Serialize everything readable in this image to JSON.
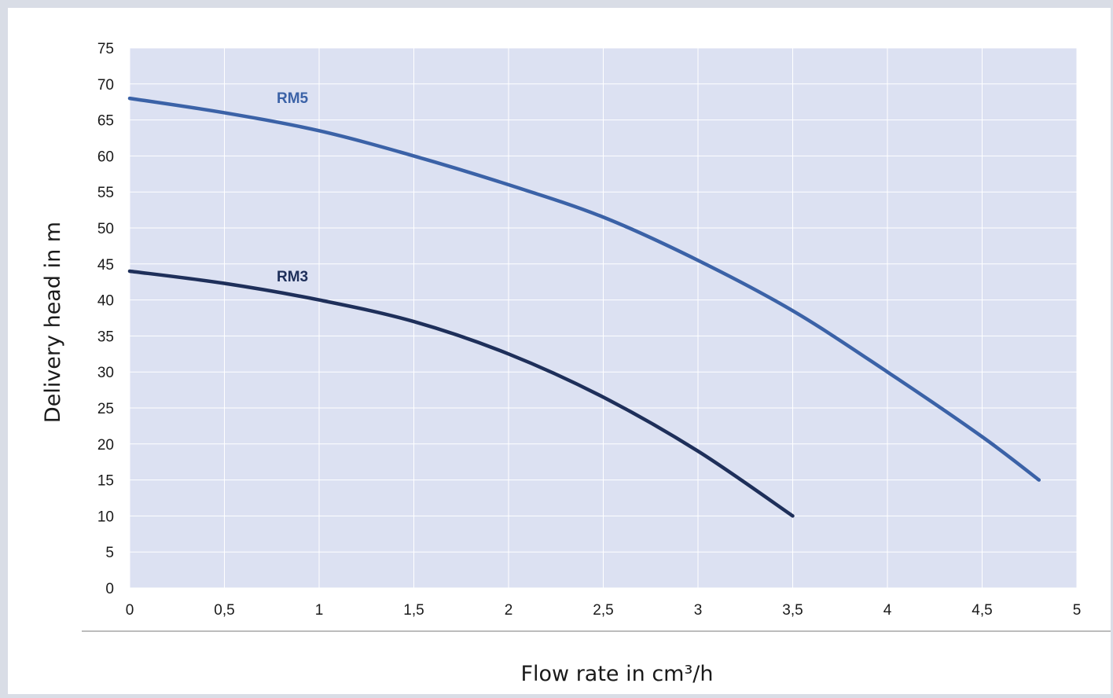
{
  "chart_data": {
    "type": "line",
    "xlabel": "Flow rate in cm³/h",
    "ylabel": "Delivery head in m",
    "xlim": [
      0,
      5
    ],
    "ylim": [
      0,
      75
    ],
    "x_ticks": [
      "0",
      "0,5",
      "1",
      "1,5",
      "2",
      "2,5",
      "3",
      "3,5",
      "4",
      "4,5",
      "5"
    ],
    "y_ticks": [
      "0",
      "5",
      "10",
      "15",
      "20",
      "25",
      "30",
      "35",
      "40",
      "45",
      "50",
      "55",
      "60",
      "65",
      "70",
      "75"
    ],
    "grid": true,
    "plot_background": "#dce1f2",
    "series": [
      {
        "name": "RM5",
        "color": "#3b62a7",
        "x": [
          0,
          0.5,
          1,
          1.5,
          2,
          2.5,
          3,
          3.5,
          4,
          4.5,
          4.8
        ],
        "y": [
          68,
          66,
          63.5,
          60,
          56,
          51.5,
          45.5,
          38.5,
          30,
          21,
          15
        ]
      },
      {
        "name": "RM3",
        "color": "#1e2f5a",
        "x": [
          0,
          0.5,
          1,
          1.5,
          2,
          2.5,
          3,
          3.5
        ],
        "y": [
          44,
          42.3,
          40,
          37,
          32.5,
          26.5,
          19,
          10
        ]
      }
    ]
  }
}
